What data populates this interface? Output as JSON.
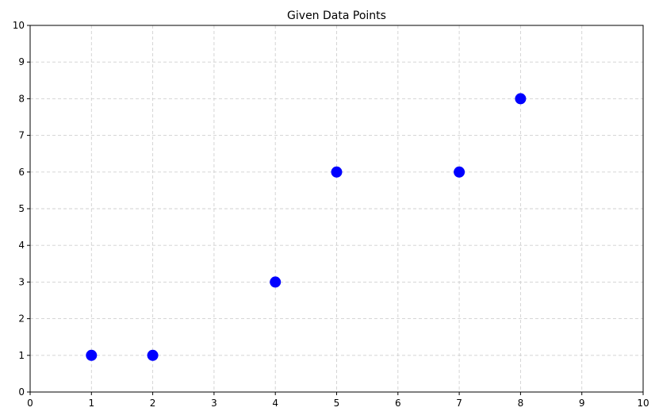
{
  "chart_data": {
    "type": "scatter",
    "title": "Given Data Points",
    "xlabel": "",
    "ylabel": "",
    "xlim": [
      0,
      10
    ],
    "ylim": [
      0,
      10
    ],
    "x_ticks": [
      "0",
      "1",
      "2",
      "3",
      "4",
      "5",
      "6",
      "7",
      "8",
      "9",
      "10"
    ],
    "y_ticks": [
      "0",
      "1",
      "2",
      "3",
      "4",
      "5",
      "6",
      "7",
      "8",
      "9",
      "10"
    ],
    "grid": true,
    "grid_style": "dashed",
    "marker_color": "#0000ff",
    "points": [
      {
        "x": 1,
        "y": 1
      },
      {
        "x": 2,
        "y": 1
      },
      {
        "x": 4,
        "y": 3
      },
      {
        "x": 5,
        "y": 6
      },
      {
        "x": 7,
        "y": 6
      },
      {
        "x": 8,
        "y": 8
      }
    ]
  }
}
